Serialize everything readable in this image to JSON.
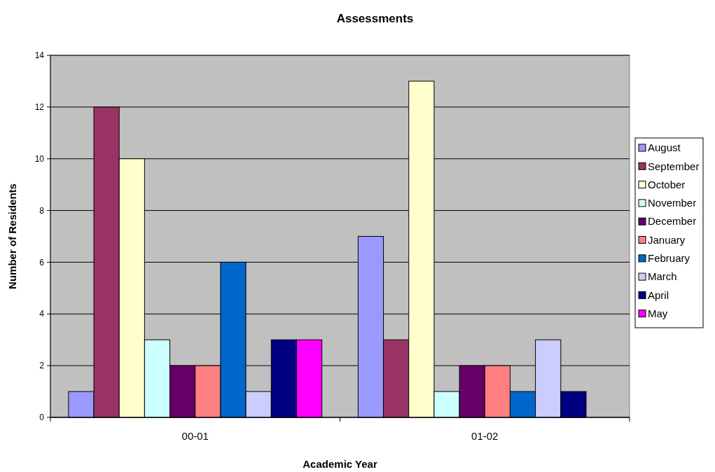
{
  "chart_data": {
    "type": "bar",
    "title": "Assessments",
    "xlabel": "Academic Year",
    "ylabel": "Number of Residents",
    "categories": [
      "00-01",
      "01-02"
    ],
    "series": [
      {
        "name": "August",
        "color": "#9999ff",
        "values": [
          1,
          7
        ]
      },
      {
        "name": "September",
        "color": "#993366",
        "values": [
          12,
          3
        ]
      },
      {
        "name": "October",
        "color": "#ffffcc",
        "values": [
          10,
          13
        ]
      },
      {
        "name": "November",
        "color": "#ccffff",
        "values": [
          3,
          1
        ]
      },
      {
        "name": "December",
        "color": "#660066",
        "values": [
          2,
          2
        ]
      },
      {
        "name": "January",
        "color": "#ff8080",
        "values": [
          2,
          2
        ]
      },
      {
        "name": "February",
        "color": "#0066cc",
        "values": [
          6,
          1
        ]
      },
      {
        "name": "March",
        "color": "#ccccff",
        "values": [
          1,
          3
        ]
      },
      {
        "name": "April",
        "color": "#000080",
        "values": [
          3,
          1
        ]
      },
      {
        "name": "May",
        "color": "#ff00ff",
        "values": [
          3,
          null
        ]
      }
    ],
    "ylim": [
      0,
      14
    ],
    "yticks": [
      0,
      2,
      4,
      6,
      8,
      10,
      12,
      14
    ],
    "grid": "y",
    "legend": "right"
  }
}
